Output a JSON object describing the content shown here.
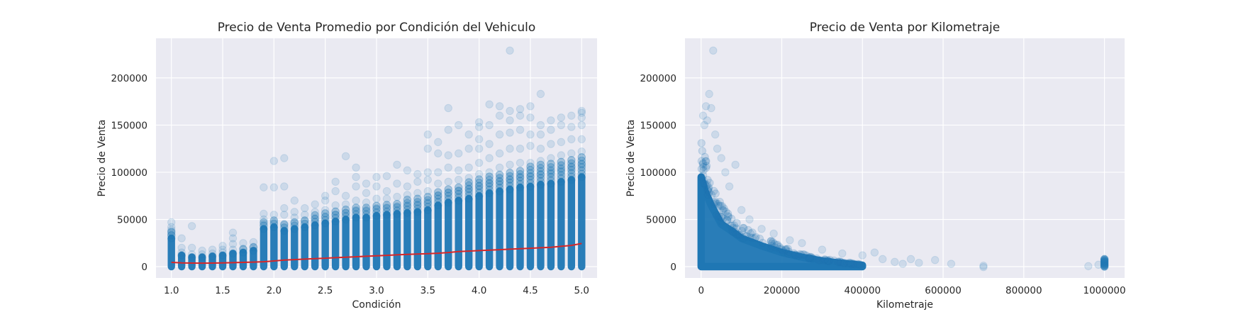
{
  "chart_data": [
    {
      "type": "scatter",
      "title": "Precio de Venta Promedio por Condición del Vehiculo",
      "xlabel": "Condición",
      "ylabel": "Precio de Venta",
      "xlim": [
        0.85,
        5.15
      ],
      "ylim": [
        -12000,
        242000
      ],
      "xticks": [
        1.0,
        1.5,
        2.0,
        2.5,
        3.0,
        3.5,
        4.0,
        4.5,
        5.0
      ],
      "xtick_labels": [
        "1.0",
        "1.5",
        "2.0",
        "2.5",
        "3.0",
        "3.5",
        "4.0",
        "4.5",
        "5.0"
      ],
      "yticks": [
        0,
        50000,
        100000,
        150000,
        200000
      ],
      "ytick_labels": [
        "0",
        "50000",
        "100000",
        "150000",
        "200000"
      ],
      "grid": true,
      "scatter_color": "#1f77b4",
      "line_color": "#d62728",
      "condition_columns": [
        {
          "x": 1.0,
          "dense_max": 30000,
          "outliers": [
            33000,
            36000,
            39000,
            42000,
            47000
          ]
        },
        {
          "x": 1.1,
          "dense_max": 12000,
          "outliers": [
            15000,
            20000,
            30000
          ]
        },
        {
          "x": 1.2,
          "dense_max": 10000,
          "outliers": [
            13000,
            20000,
            43000
          ]
        },
        {
          "x": 1.3,
          "dense_max": 10000,
          "outliers": [
            13000,
            17000
          ]
        },
        {
          "x": 1.4,
          "dense_max": 11000,
          "outliers": [
            14000,
            18000
          ]
        },
        {
          "x": 1.5,
          "dense_max": 12000,
          "outliers": [
            15000,
            18000,
            22000
          ]
        },
        {
          "x": 1.6,
          "dense_max": 14000,
          "outliers": [
            18000,
            24000,
            30000,
            36000
          ]
        },
        {
          "x": 1.7,
          "dense_max": 15000,
          "outliers": [
            19000,
            25000
          ]
        },
        {
          "x": 1.8,
          "dense_max": 17000,
          "outliers": [
            21000,
            26000
          ]
        },
        {
          "x": 1.9,
          "dense_max": 40000,
          "outliers": [
            45000,
            50000,
            56000,
            84000
          ]
        },
        {
          "x": 2.0,
          "dense_max": 42000,
          "outliers": [
            47000,
            55000,
            84000,
            112000
          ]
        },
        {
          "x": 2.1,
          "dense_max": 38000,
          "outliers": [
            44000,
            55000,
            62000,
            85000,
            115000
          ]
        },
        {
          "x": 2.2,
          "dense_max": 40000,
          "outliers": [
            46000,
            52000,
            58000,
            70000
          ]
        },
        {
          "x": 2.3,
          "dense_max": 42000,
          "outliers": [
            48000,
            55000,
            62000
          ]
        },
        {
          "x": 2.4,
          "dense_max": 44000,
          "outliers": [
            50000,
            58000,
            66000
          ]
        },
        {
          "x": 2.5,
          "dense_max": 46000,
          "outliers": [
            52000,
            60000,
            70000,
            75000
          ]
        },
        {
          "x": 2.6,
          "dense_max": 48000,
          "outliers": [
            55000,
            65000,
            80000,
            90000
          ]
        },
        {
          "x": 2.7,
          "dense_max": 50000,
          "outliers": [
            57000,
            66000,
            75000,
            117000
          ]
        },
        {
          "x": 2.8,
          "dense_max": 52000,
          "outliers": [
            60000,
            70000,
            85000,
            95000,
            105000
          ]
        },
        {
          "x": 2.9,
          "dense_max": 52000,
          "outliers": [
            60000,
            68000,
            78000,
            88000
          ]
        },
        {
          "x": 3.0,
          "dense_max": 54000,
          "outliers": [
            62000,
            72000,
            85000,
            95000
          ]
        },
        {
          "x": 3.1,
          "dense_max": 55000,
          "outliers": [
            63000,
            72000,
            80000,
            96000
          ]
        },
        {
          "x": 3.2,
          "dense_max": 56000,
          "outliers": [
            64000,
            74000,
            88000,
            108000
          ]
        },
        {
          "x": 3.3,
          "dense_max": 57000,
          "outliers": [
            65000,
            76000,
            85000,
            102000
          ]
        },
        {
          "x": 3.4,
          "dense_max": 58000,
          "outliers": [
            66000,
            78000,
            90000,
            98000
          ]
        },
        {
          "x": 3.5,
          "dense_max": 60000,
          "outliers": [
            68000,
            80000,
            92000,
            100000,
            125000,
            140000
          ]
        },
        {
          "x": 3.6,
          "dense_max": 65000,
          "outliers": [
            75000,
            88000,
            100000,
            120000,
            132000
          ]
        },
        {
          "x": 3.7,
          "dense_max": 68000,
          "outliers": [
            78000,
            90000,
            105000,
            118000,
            145000,
            168000
          ]
        },
        {
          "x": 3.8,
          "dense_max": 70000,
          "outliers": [
            80000,
            92000,
            102000,
            120000,
            150000
          ]
        },
        {
          "x": 3.9,
          "dense_max": 72000,
          "outliers": [
            82000,
            94000,
            105000,
            125000,
            140000
          ]
        },
        {
          "x": 4.0,
          "dense_max": 75000,
          "outliers": [
            85000,
            98000,
            110000,
            125000,
            135000,
            148000,
            153000
          ]
        },
        {
          "x": 4.1,
          "dense_max": 78000,
          "outliers": [
            88000,
            100000,
            115000,
            130000,
            150000,
            172000
          ]
        },
        {
          "x": 4.2,
          "dense_max": 80000,
          "outliers": [
            90000,
            105000,
            120000,
            140000,
            160000,
            170000
          ]
        },
        {
          "x": 4.3,
          "dense_max": 82000,
          "outliers": [
            92000,
            108000,
            125000,
            142000,
            155000,
            165000,
            229000
          ]
        },
        {
          "x": 4.4,
          "dense_max": 84000,
          "outliers": [
            95000,
            110000,
            125000,
            145000,
            160000,
            167000
          ]
        },
        {
          "x": 4.5,
          "dense_max": 85000,
          "outliers": [
            96000,
            110000,
            128000,
            140000,
            158000,
            170000
          ]
        },
        {
          "x": 4.6,
          "dense_max": 87000,
          "outliers": [
            98000,
            112000,
            125000,
            140000,
            150000,
            183000
          ]
        },
        {
          "x": 4.7,
          "dense_max": 88000,
          "outliers": [
            100000,
            115000,
            130000,
            145000,
            155000
          ]
        },
        {
          "x": 4.8,
          "dense_max": 90000,
          "outliers": [
            102000,
            118000,
            132000,
            150000,
            158000
          ]
        },
        {
          "x": 4.9,
          "dense_max": 92000,
          "outliers": [
            105000,
            120000,
            135000,
            148000,
            160000
          ]
        },
        {
          "x": 5.0,
          "dense_max": 95000,
          "outliers": [
            108000,
            122000,
            135000,
            150000,
            158000,
            163000,
            165000
          ]
        }
      ],
      "mean_line": {
        "x": [
          1.0,
          1.1,
          1.2,
          1.3,
          1.4,
          1.5,
          1.6,
          1.7,
          1.8,
          1.9,
          2.0,
          2.1,
          2.2,
          2.3,
          2.4,
          2.5,
          2.6,
          2.7,
          2.8,
          2.9,
          3.0,
          3.1,
          3.2,
          3.3,
          3.4,
          3.5,
          3.6,
          3.7,
          3.8,
          3.9,
          4.0,
          4.1,
          4.2,
          4.3,
          4.4,
          4.5,
          4.6,
          4.7,
          4.8,
          4.9,
          5.0
        ],
        "y": [
          4500,
          4000,
          3800,
          3700,
          3800,
          4000,
          4200,
          4500,
          4800,
          5200,
          6000,
          7000,
          7500,
          8000,
          8500,
          9000,
          9500,
          10000,
          10500,
          11000,
          11500,
          12000,
          12500,
          13000,
          13300,
          13700,
          14200,
          15000,
          16000,
          16500,
          17000,
          17500,
          18000,
          18500,
          19000,
          19500,
          20000,
          20500,
          21500,
          22500,
          24500
        ]
      }
    },
    {
      "type": "scatter",
      "title": "Precio de Venta por Kilometraje",
      "xlabel": "Kilometraje",
      "ylabel": "Precio de Venta",
      "xlim": [
        -40000,
        1050000
      ],
      "ylim": [
        -12000,
        242000
      ],
      "xticks": [
        0,
        200000,
        400000,
        600000,
        800000,
        1000000
      ],
      "xtick_labels": [
        "0",
        "200000",
        "400000",
        "600000",
        "800000",
        "1000000"
      ],
      "yticks": [
        0,
        50000,
        100000,
        150000,
        200000
      ],
      "ytick_labels": [
        "0",
        "50000",
        "100000",
        "150000",
        "200000"
      ],
      "grid": true,
      "scatter_color": "#1f77b4",
      "dense_envelope": {
        "x": [
          0,
          10000,
          25000,
          50000,
          75000,
          100000,
          150000,
          200000,
          250000,
          300000,
          350000,
          400000
        ],
        "y": [
          95000,
          80000,
          65000,
          45000,
          38000,
          30000,
          22000,
          15000,
          10000,
          6000,
          3500,
          1500
        ]
      },
      "outliers": [
        {
          "x": 5000,
          "y": 160000
        },
        {
          "x": 8000,
          "y": 150000
        },
        {
          "x": 12000,
          "y": 170000
        },
        {
          "x": 15000,
          "y": 155000
        },
        {
          "x": 20000,
          "y": 183000
        },
        {
          "x": 25000,
          "y": 168000
        },
        {
          "x": 30000,
          "y": 229000
        },
        {
          "x": 35000,
          "y": 140000
        },
        {
          "x": 40000,
          "y": 125000
        },
        {
          "x": 50000,
          "y": 115000
        },
        {
          "x": 60000,
          "y": 100000
        },
        {
          "x": 70000,
          "y": 85000
        },
        {
          "x": 85000,
          "y": 108000
        },
        {
          "x": 100000,
          "y": 60000
        },
        {
          "x": 120000,
          "y": 50000
        },
        {
          "x": 150000,
          "y": 40000
        },
        {
          "x": 180000,
          "y": 35000
        },
        {
          "x": 220000,
          "y": 28000
        },
        {
          "x": 250000,
          "y": 25000
        },
        {
          "x": 300000,
          "y": 18000
        },
        {
          "x": 350000,
          "y": 14000
        },
        {
          "x": 400000,
          "y": 12000
        },
        {
          "x": 430000,
          "y": 15000
        },
        {
          "x": 450000,
          "y": 8000
        },
        {
          "x": 480000,
          "y": 5000
        },
        {
          "x": 500000,
          "y": 3000
        },
        {
          "x": 520000,
          "y": 8000
        },
        {
          "x": 540000,
          "y": 4000
        },
        {
          "x": 580000,
          "y": 7000
        },
        {
          "x": 620000,
          "y": 3000
        },
        {
          "x": 700000,
          "y": 1000
        },
        {
          "x": 700000,
          "y": -500
        },
        {
          "x": 960000,
          "y": 500
        },
        {
          "x": 985000,
          "y": 2000
        }
      ],
      "cluster_x": 1000000,
      "cluster_y": [
        0,
        1000,
        2000,
        3000,
        4000,
        5000,
        6000,
        7000,
        8000
      ]
    }
  ]
}
